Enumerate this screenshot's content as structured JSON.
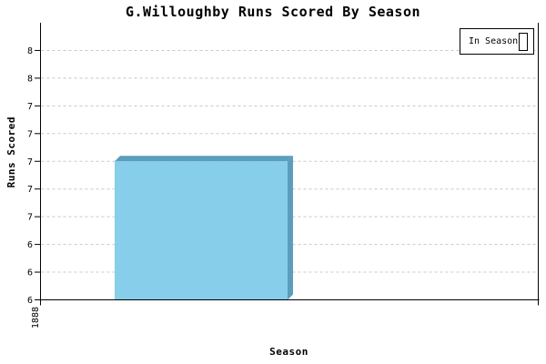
{
  "title": "G.Willoughby Runs Scored By Season",
  "legend": {
    "position": "top-right",
    "items": [
      {
        "label": "In Season",
        "swatch_color": "#87CEEB"
      }
    ]
  },
  "colors": {
    "background": "#FFFFFF",
    "bar_fill": "#87CEEB",
    "bar_3d_edge": "#5A9EBC",
    "grid": "#C8C8C8",
    "axis": "#000000",
    "text": "#000000"
  },
  "chart_data": {
    "type": "bar",
    "title": "G.Willoughby Runs Scored By Season",
    "xlabel": "Season",
    "ylabel": "Runs Scored",
    "categories": [
      "1888"
    ],
    "series": [
      {
        "name": "In Season",
        "values": [
          7.0
        ]
      }
    ],
    "ylim": [
      6.0,
      8.0
    ],
    "yticks": [
      {
        "value": 6.0,
        "label": "6"
      },
      {
        "value": 6.2,
        "label": "6"
      },
      {
        "value": 6.4,
        "label": "6"
      },
      {
        "value": 6.6,
        "label": "7"
      },
      {
        "value": 6.8,
        "label": "7"
      },
      {
        "value": 7.0,
        "label": "7"
      },
      {
        "value": 7.2,
        "label": "7"
      },
      {
        "value": 7.4,
        "label": "7"
      },
      {
        "value": 7.6,
        "label": "8"
      },
      {
        "value": 7.8,
        "label": "8"
      }
    ],
    "grid": "horizontal-dashed",
    "bar_style": "3d",
    "legend_position": "top-right"
  }
}
